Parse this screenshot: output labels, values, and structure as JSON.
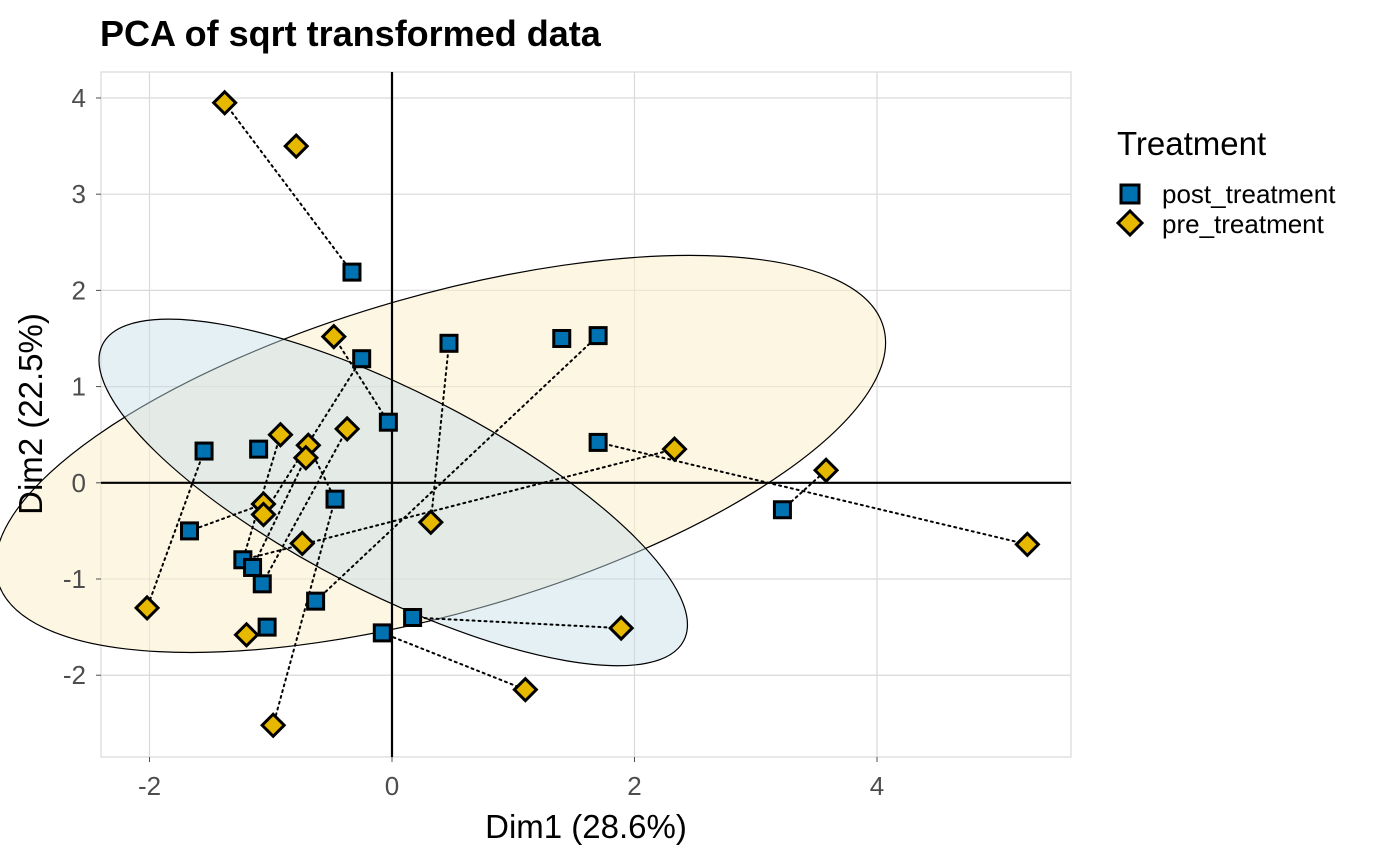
{
  "chart_data": {
    "type": "scatter",
    "title": "PCA of sqrt transformed data",
    "xlabel": "Dim1 (28.6%)",
    "ylabel": "Dim2 (22.5%)",
    "xlim": [
      -2.4,
      5.6
    ],
    "ylim": [
      -2.85,
      4.27
    ],
    "xticks": [
      -2,
      0,
      2,
      4
    ],
    "xtick_labels": [
      "-2",
      "0",
      "2",
      "4"
    ],
    "yticks": [
      -2,
      -1,
      0,
      1,
      2,
      3,
      4
    ],
    "ytick_labels": [
      "-2",
      "-1",
      "0",
      "1",
      "2",
      "3",
      "4"
    ],
    "grid": true,
    "legend": {
      "title": "Treatment",
      "position": "right",
      "entries": [
        {
          "label": "post_treatment",
          "shape": "square",
          "color": "#0072B2"
        },
        {
          "label": "pre_treatment",
          "shape": "diamond",
          "color": "#E6B800"
        }
      ]
    },
    "series": [
      {
        "name": "post_treatment",
        "shape": "square",
        "color": "#0072B2",
        "points": [
          [
            -0.33,
            2.19
          ],
          [
            -0.25,
            1.29
          ],
          [
            0.47,
            1.45
          ],
          [
            1.4,
            1.5
          ],
          [
            1.7,
            1.53
          ],
          [
            -0.03,
            0.63
          ],
          [
            -1.55,
            0.33
          ],
          [
            -1.1,
            0.35
          ],
          [
            1.7,
            0.42
          ],
          [
            -0.47,
            -0.17
          ],
          [
            -1.67,
            -0.5
          ],
          [
            -1.23,
            -0.8
          ],
          [
            -1.15,
            -0.88
          ],
          [
            -1.07,
            -1.05
          ],
          [
            -0.63,
            -1.23
          ],
          [
            0.17,
            -1.4
          ],
          [
            -1.03,
            -1.5
          ],
          [
            -0.08,
            -1.56
          ],
          [
            3.22,
            -0.28
          ]
        ]
      },
      {
        "name": "pre_treatment",
        "shape": "diamond",
        "color": "#E6B800",
        "points": [
          [
            -1.38,
            3.95
          ],
          [
            -0.79,
            3.5
          ],
          [
            -0.48,
            1.52
          ],
          [
            -0.92,
            0.5
          ],
          [
            -0.69,
            0.39
          ],
          [
            -0.71,
            0.26
          ],
          [
            -0.37,
            0.56
          ],
          [
            -1.06,
            -0.22
          ],
          [
            -1.06,
            -0.33
          ],
          [
            -0.74,
            -0.63
          ],
          [
            0.32,
            -0.41
          ],
          [
            2.33,
            0.35
          ],
          [
            3.58,
            0.13
          ],
          [
            5.24,
            -0.64
          ],
          [
            1.89,
            -1.51
          ],
          [
            1.1,
            -2.15
          ],
          [
            -2.02,
            -1.3
          ],
          [
            -1.2,
            -1.58
          ],
          [
            -0.98,
            -2.52
          ]
        ]
      }
    ],
    "pairs": [
      [
        [
          -1.38,
          3.95
        ],
        [
          -0.33,
          2.19
        ]
      ],
      [
        [
          -0.48,
          1.52
        ],
        [
          -0.03,
          0.63
        ]
      ],
      [
        [
          -0.25,
          1.29
        ],
        [
          -1.06,
          -0.33
        ]
      ],
      [
        [
          -0.37,
          0.56
        ],
        [
          -1.07,
          -1.05
        ]
      ],
      [
        [
          -0.92,
          0.5
        ],
        [
          -1.23,
          -0.8
        ]
      ],
      [
        [
          -0.69,
          0.39
        ],
        [
          -0.47,
          -0.17
        ]
      ],
      [
        [
          -0.71,
          0.26
        ],
        [
          -1.15,
          -0.88
        ]
      ],
      [
        [
          0.47,
          1.45
        ],
        [
          0.32,
          -0.41
        ]
      ],
      [
        [
          1.7,
          1.53
        ],
        [
          -0.63,
          -1.23
        ]
      ],
      [
        [
          -1.55,
          0.33
        ],
        [
          -2.02,
          -1.3
        ]
      ],
      [
        [
          -1.06,
          -0.22
        ],
        [
          -1.67,
          -0.5
        ]
      ],
      [
        [
          -0.47,
          -0.17
        ],
        [
          -0.98,
          -2.52
        ]
      ],
      [
        [
          1.7,
          0.42
        ],
        [
          5.24,
          -0.64
        ]
      ],
      [
        [
          2.33,
          0.35
        ],
        [
          -1.23,
          -0.8
        ]
      ],
      [
        [
          3.22,
          -0.28
        ],
        [
          3.58,
          0.13
        ]
      ],
      [
        [
          0.17,
          -1.4
        ],
        [
          1.89,
          -1.51
        ]
      ],
      [
        [
          -0.08,
          -1.56
        ],
        [
          1.1,
          -2.15
        ]
      ]
    ],
    "ellipses": [
      {
        "group": "pre_treatment",
        "fill": "#FBEFCC",
        "opacity": 0.55,
        "center": [
          0.4,
          0.3
        ],
        "rx": 3.8,
        "ry": 1.65,
        "angle_deg": -16
      },
      {
        "group": "post_treatment",
        "fill": "#C6DDE8",
        "opacity": 0.45,
        "center": [
          0.01,
          -0.1
        ],
        "rx": 2.69,
        "ry": 1.05,
        "angle_deg": 27
      }
    ]
  }
}
